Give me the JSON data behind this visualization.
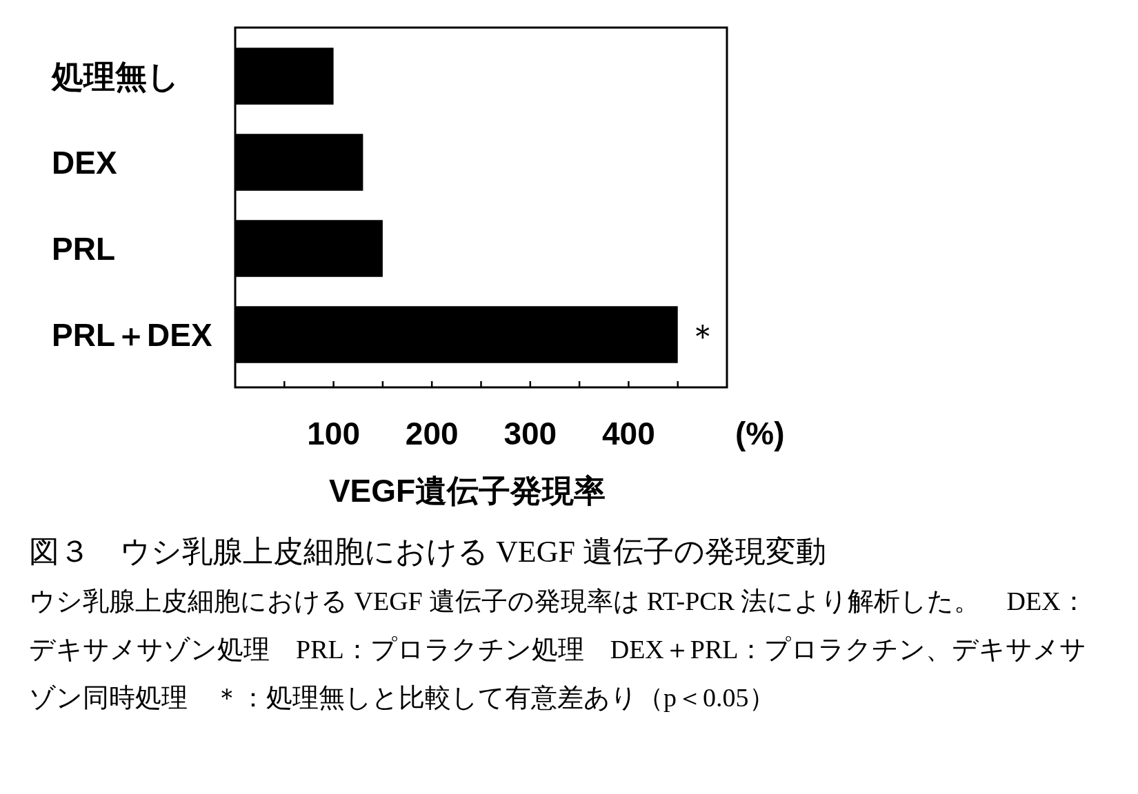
{
  "chart_data": {
    "type": "bar",
    "orientation": "horizontal",
    "title": "図３　ウシ乳腺上皮細胞における VEGF 遺伝子の発現変動",
    "xlabel": "VEGF遺伝子発現率",
    "categories": [
      "処理無し",
      "DEX",
      "PRL",
      "PRL＋DEX"
    ],
    "values": [
      100,
      130,
      150,
      450
    ],
    "color": "#000000",
    "xlim": [
      0,
      500
    ],
    "xticks": [
      {
        "value": 50,
        "label": null
      },
      100,
      {
        "value": 150,
        "label": null
      },
      200,
      {
        "value": 250,
        "label": null
      },
      300,
      {
        "value": 350,
        "label": null
      },
      400,
      {
        "value": 450,
        "label": null
      }
    ],
    "grid": false,
    "annotations": [
      "(%)",
      {
        "text": "＊",
        "x": 450,
        "y": "PRL＋DEX"
      },
      "ウシ乳腺上皮細胞における VEGF 遺伝子の発現率は RT-PCR 法により解析した。　DEX：デキサメサゾン処理　PRL：プロラクチン処理　DEX＋PRL：プロラクチン、デキサメサゾン同時処理　＊：処理無しと比較して有意差あり（p＜0.05）"
    ]
  }
}
